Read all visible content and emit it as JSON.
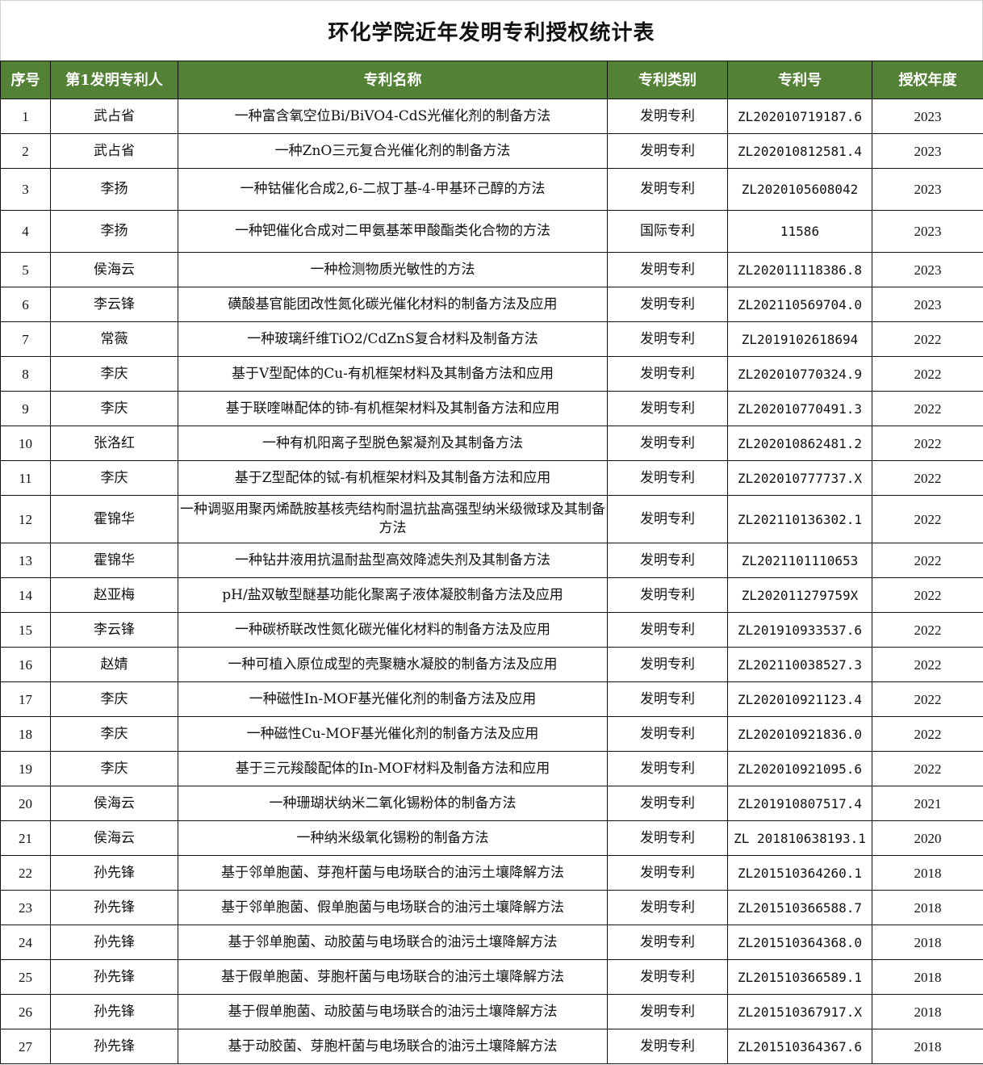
{
  "title": "环化学院近年发明专利授权统计表",
  "colors": {
    "header_bg": "#538135",
    "header_text": "#ffffff"
  },
  "columns": [
    "序号",
    "第1发明专利人",
    "专利名称",
    "专利类别",
    "专利号",
    "授权年度"
  ],
  "rows": [
    [
      "1",
      "武占省",
      "一种富含氧空位Bi/BiVO4-CdS光催化剂的制备方法",
      "发明专利",
      "ZL202010719187.6",
      "2023"
    ],
    [
      "2",
      "武占省",
      "一种ZnO三元复合光催化剂的制备方法",
      "发明专利",
      "ZL202010812581.4",
      "2023"
    ],
    [
      "3",
      "李扬",
      "一种钴催化合成2,6-二叔丁基-4-甲基环己醇的方法",
      "发明专利",
      "ZL2020105608042",
      "2023"
    ],
    [
      "4",
      "李扬",
      "一种钯催化合成对二甲氨基苯甲酸酯类化合物的方法",
      "国际专利",
      "11586",
      "2023"
    ],
    [
      "5",
      "侯海云",
      "一种检测物质光敏性的方法",
      "发明专利",
      "ZL202011118386.8",
      "2023"
    ],
    [
      "6",
      "李云锋",
      "磺酸基官能团改性氮化碳光催化材料的制备方法及应用",
      "发明专利",
      "ZL202110569704.0",
      "2023"
    ],
    [
      "7",
      "常薇",
      "一种玻璃纤维TiO2/CdZnS复合材料及制备方法",
      "发明专利",
      "ZL2019102618694",
      "2022"
    ],
    [
      "8",
      "李庆",
      "基于V型配体的Cu-有机框架材料及其制备方法和应用",
      "发明专利",
      "ZL202010770324.9",
      "2022"
    ],
    [
      "9",
      "李庆",
      "基于联喹啉配体的铈-有机框架材料及其制备方法和应用",
      "发明专利",
      "ZL202010770491.3",
      "2022"
    ],
    [
      "10",
      "张洛红",
      "一种有机阳离子型脱色絮凝剂及其制备方法",
      "发明专利",
      "ZL202010862481.2",
      "2022"
    ],
    [
      "11",
      "李庆",
      "基于Z型配体的铽-有机框架材料及其制备方法和应用",
      "发明专利",
      "ZL202010777737.X",
      "2022"
    ],
    [
      "12",
      "霍锦华",
      "一种调驱用聚丙烯酰胺基核壳结构耐温抗盐高强型纳米级微球及其制备方法",
      "发明专利",
      "ZL202110136302.1",
      "2022"
    ],
    [
      "13",
      "霍锦华",
      "一种钻井液用抗温耐盐型高效降滤失剂及其制备方法",
      "发明专利",
      "ZL2021101110653",
      "2022"
    ],
    [
      "14",
      "赵亚梅",
      "pH/盐双敏型醚基功能化聚离子液体凝胶制备方法及应用",
      "发明专利",
      "ZL202011279759X",
      "2022"
    ],
    [
      "15",
      "李云锋",
      "一种碳桥联改性氮化碳光催化材料的制备方法及应用",
      "发明专利",
      "ZL201910933537.6",
      "2022"
    ],
    [
      "16",
      "赵婧",
      "一种可植入原位成型的壳聚糖水凝胶的制备方法及应用",
      "发明专利",
      "ZL202110038527.3",
      "2022"
    ],
    [
      "17",
      "李庆",
      "一种磁性In-MOF基光催化剂的制备方法及应用",
      "发明专利",
      "ZL202010921123.4",
      "2022"
    ],
    [
      "18",
      "李庆",
      "一种磁性Cu-MOF基光催化剂的制备方法及应用",
      "发明专利",
      "ZL202010921836.0",
      "2022"
    ],
    [
      "19",
      "李庆",
      "基于三元羧酸配体的In-MOF材料及制备方法和应用",
      "发明专利",
      "ZL202010921095.6",
      "2022"
    ],
    [
      "20",
      "侯海云",
      "一种珊瑚状纳米二氧化锡粉体的制备方法",
      "发明专利",
      "ZL201910807517.4",
      "2021"
    ],
    [
      "21",
      "侯海云",
      "一种纳米级氧化锡粉的制备方法",
      "发明专利",
      "ZL 201810638193.1",
      "2020"
    ],
    [
      "22",
      "孙先锋",
      "基于邻单胞菌、芽孢杆菌与电场联合的油污土壤降解方法",
      "发明专利",
      "ZL201510364260.1",
      "2018"
    ],
    [
      "23",
      "孙先锋",
      "基于邻单胞菌、假单胞菌与电场联合的油污土壤降解方法",
      "发明专利",
      "ZL201510366588.7",
      "2018"
    ],
    [
      "24",
      "孙先锋",
      "基于邻单胞菌、动胶菌与电场联合的油污土壤降解方法",
      "发明专利",
      "ZL201510364368.0",
      "2018"
    ],
    [
      "25",
      "孙先锋",
      "基于假单胞菌、芽胞杆菌与电场联合的油污土壤降解方法",
      "发明专利",
      "ZL201510366589.1",
      "2018"
    ],
    [
      "26",
      "孙先锋",
      "基于假单胞菌、动胶菌与电场联合的油污土壤降解方法",
      "发明专利",
      "ZL201510367917.X",
      "2018"
    ],
    [
      "27",
      "孙先锋",
      "基于动胶菌、芽胞杆菌与电场联合的油污土壤降解方法",
      "发明专利",
      "ZL201510364367.6",
      "2018"
    ]
  ]
}
